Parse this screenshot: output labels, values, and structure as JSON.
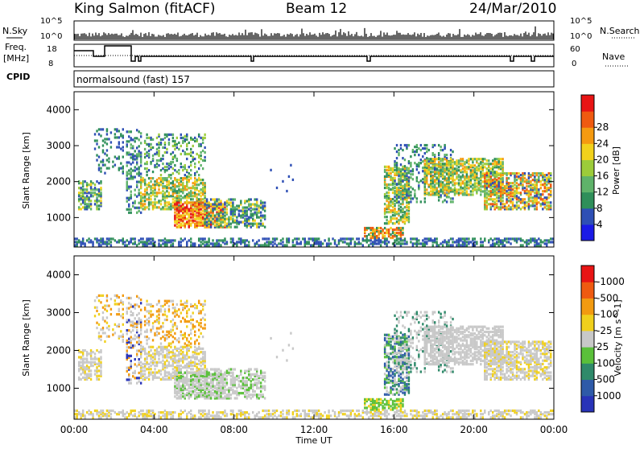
{
  "header": {
    "station": "King Salmon (fitACF)",
    "beam": "Beam 12",
    "date": "24/Mar/2010"
  },
  "strip_labels": {
    "nsky": "N.Sky",
    "nsearch": "N.Search",
    "freq_top": "Freq.",
    "freq_unit": "[MHz]",
    "nave": "Nave",
    "cpid": "CPID"
  },
  "strip_ticks": {
    "nsky_hi": "10^5",
    "nsky_lo": "10^0",
    "freq_hi": "18",
    "freq_lo": "8",
    "nave_hi": "60",
    "nave_lo": "0"
  },
  "cpid_text": "normalsound (fast) 157",
  "time_axis": {
    "label": "Time UT",
    "ticks": [
      "00:00",
      "04:00",
      "08:00",
      "12:00",
      "16:00",
      "20:00",
      "00:00"
    ]
  },
  "chart_data": [
    {
      "type": "heatmap",
      "name": "power",
      "ylabel": "Slant Range [km]",
      "yticks": [
        1000,
        2000,
        3000,
        4000
      ],
      "ylim": [
        180,
        4500
      ],
      "xlim_hours": [
        0,
        24
      ],
      "colorbar": {
        "label": "Power [dB]",
        "ticks": [
          "4",
          "8",
          "12",
          "16",
          "20",
          "24",
          "28"
        ],
        "colors": [
          "#1a1ae6",
          "#2e4fb5",
          "#2f8f5a",
          "#5fb36a",
          "#9ccc3a",
          "#f2d21c",
          "#f59a10",
          "#ef5a10",
          "#e81414"
        ]
      }
    },
    {
      "type": "heatmap",
      "name": "velocity",
      "ylabel": "Slant Range [km]",
      "yticks": [
        1000,
        2000,
        3000,
        4000
      ],
      "ylim": [
        180,
        4500
      ],
      "xlim_hours": [
        0,
        24
      ],
      "colorbar": {
        "label": "Velocity [m s^-1]",
        "ticks": [
          "1000",
          "500",
          "100",
          "25",
          "-25",
          "-100",
          "-500",
          "-1000"
        ],
        "colors": [
          "#2833b8",
          "#2e5aa8",
          "#2f8a6a",
          "#5ac03a",
          "#c8c8c8",
          "#f0d01c",
          "#f29a10",
          "#ef5a10",
          "#e81414"
        ]
      }
    }
  ]
}
